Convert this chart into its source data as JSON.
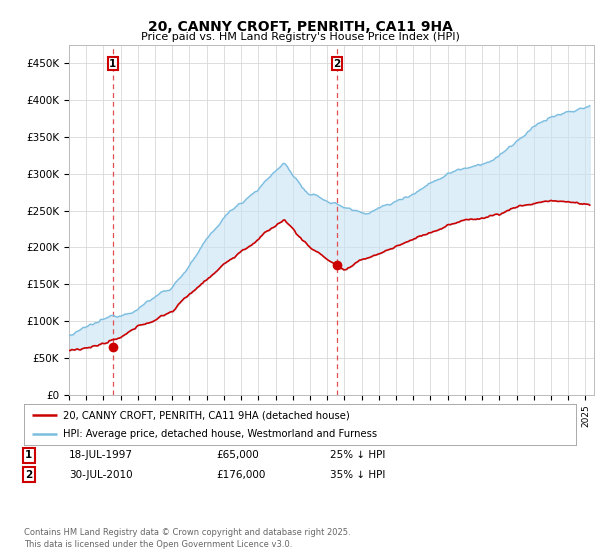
{
  "title": "20, CANNY CROFT, PENRITH, CA11 9HA",
  "subtitle": "Price paid vs. HM Land Registry's House Price Index (HPI)",
  "ylabel_ticks": [
    "£0",
    "£50K",
    "£100K",
    "£150K",
    "£200K",
    "£250K",
    "£300K",
    "£350K",
    "£400K",
    "£450K"
  ],
  "ytick_values": [
    0,
    50000,
    100000,
    150000,
    200000,
    250000,
    300000,
    350000,
    400000,
    450000
  ],
  "ylim": [
    0,
    475000
  ],
  "xlim_start": 1995.0,
  "xlim_end": 2025.5,
  "sale1_x": 1997.54,
  "sale1_y": 65000,
  "sale2_x": 2010.58,
  "sale2_y": 176000,
  "hpi_color": "#7bbde0",
  "hpi_fill_color": "#c8e4f5",
  "price_color": "#cc0000",
  "grid_color": "#d8d8d8",
  "dashed_color": "#e05050",
  "background_color": "#ffffff",
  "legend_entry1": "20, CANNY CROFT, PENRITH, CA11 9HA (detached house)",
  "legend_entry2": "HPI: Average price, detached house, Westmorland and Furness",
  "footer": "Contains HM Land Registry data © Crown copyright and database right 2025.\nThis data is licensed under the Open Government Licence v3.0.",
  "table_row1": [
    "1",
    "18-JUL-1997",
    "£65,000",
    "25% ↓ HPI"
  ],
  "table_row2": [
    "2",
    "30-JUL-2010",
    "£176,000",
    "35% ↓ HPI"
  ]
}
